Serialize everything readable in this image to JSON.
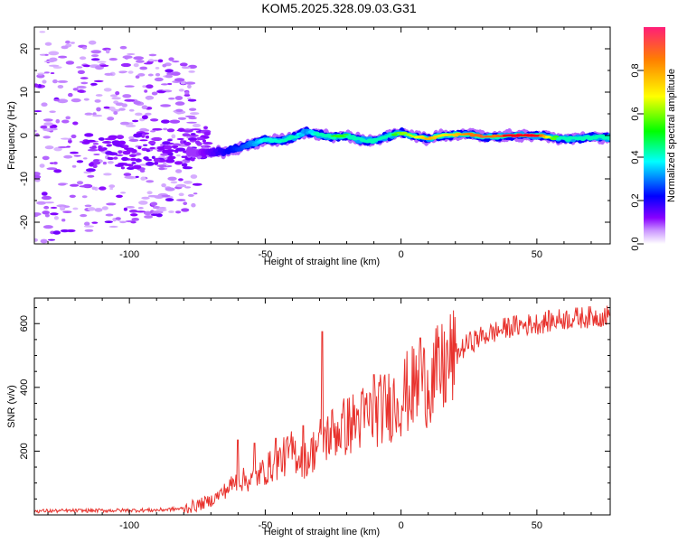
{
  "title": "KOM5.2025.328.09.03.G31",
  "colors": {
    "snr_line": "#e8322d",
    "axis": "#000000",
    "spectrum_ridge": "#ff0000"
  },
  "chart_data": [
    {
      "type": "heatmap",
      "name": "spectrogram",
      "xlabel": "Height of straight line (km)",
      "ylabel": "Frequency (Hz)",
      "xlim": [
        -135,
        77
      ],
      "ylim": [
        -25,
        25
      ],
      "xticks": [
        -100,
        -50,
        0,
        50
      ],
      "xtick_labels": [
        "-100",
        "-50",
        "0",
        "50"
      ],
      "yticks": [
        -20,
        -10,
        0,
        10,
        20
      ],
      "ytick_labels": [
        "-20",
        "-10",
        "0",
        "10",
        "20"
      ],
      "ridge": {
        "x": [
          -75,
          -65,
          -60,
          -55,
          -50,
          -45,
          -40,
          -35,
          -30,
          -25,
          -20,
          -15,
          -10,
          -5,
          0,
          5,
          10,
          15,
          20,
          25,
          30,
          35,
          40,
          45,
          50,
          55,
          60,
          65,
          70,
          77
        ],
        "y": [
          -4,
          -3.8,
          -3,
          -2,
          -1,
          -1.2,
          -0.5,
          0.8,
          0.2,
          -0.3,
          0,
          -1,
          -1.2,
          -0.2,
          0.6,
          -0.2,
          -0.8,
          0,
          0.2,
          0.3,
          -0.3,
          -0.2,
          0,
          0,
          0,
          -0.4,
          -0.8,
          -0.6,
          -0.4,
          -0.5
        ],
        "amplitude": [
          0.1,
          0.2,
          0.25,
          0.3,
          0.4,
          0.4,
          0.45,
          0.3,
          0.45,
          0.55,
          0.55,
          0.5,
          0.5,
          0.5,
          0.6,
          0.65,
          0.8,
          0.7,
          0.75,
          0.85,
          0.9,
          0.85,
          1.0,
          1.0,
          1.0,
          0.6,
          0.5,
          0.55,
          0.5,
          0.45
        ]
      },
      "noise_region_x": [
        -135,
        -75
      ],
      "noise_band_y": [
        -25,
        25
      ]
    },
    {
      "type": "colorbar",
      "name": "colorbar",
      "label": "Normalized spectral amplitude",
      "range": [
        0,
        1
      ],
      "ticks": [
        "0.0",
        "0.2",
        "0.4",
        "0.6",
        "0.8"
      ]
    },
    {
      "type": "line",
      "name": "snr",
      "xlabel": "Height of straight line (km)",
      "ylabel": "SNR (v/v)",
      "xlim": [
        -135,
        77
      ],
      "ylim": [
        0,
        680
      ],
      "xticks": [
        -100,
        -50,
        0,
        50
      ],
      "xtick_labels": [
        "-100",
        "-50",
        "0",
        "50"
      ],
      "yticks": [
        200,
        400,
        600
      ],
      "ytick_labels": [
        "200",
        "400",
        "600"
      ],
      "trend": {
        "x": [
          -135,
          -90,
          -80,
          -75,
          -70,
          -65,
          -60,
          -55,
          -50,
          -45,
          -40,
          -35,
          -30,
          -25,
          -20,
          -15,
          -10,
          -5,
          0,
          5,
          10,
          15,
          20,
          25,
          30,
          40,
          50,
          60,
          77
        ],
        "y": [
          12,
          15,
          20,
          30,
          45,
          75,
          110,
          110,
          140,
          170,
          200,
          170,
          230,
          260,
          280,
          300,
          320,
          340,
          370,
          400,
          420,
          450,
          500,
          540,
          560,
          590,
          600,
          615,
          625
        ]
      },
      "spikes": [
        {
          "x": -60,
          "y": 235
        },
        {
          "x": -54,
          "y": 225
        },
        {
          "x": -46,
          "y": 240
        },
        {
          "x": -36,
          "y": 280
        },
        {
          "x": -29,
          "y": 575
        },
        {
          "x": -10,
          "y": 440
        },
        {
          "x": 7,
          "y": 555
        }
      ]
    }
  ]
}
